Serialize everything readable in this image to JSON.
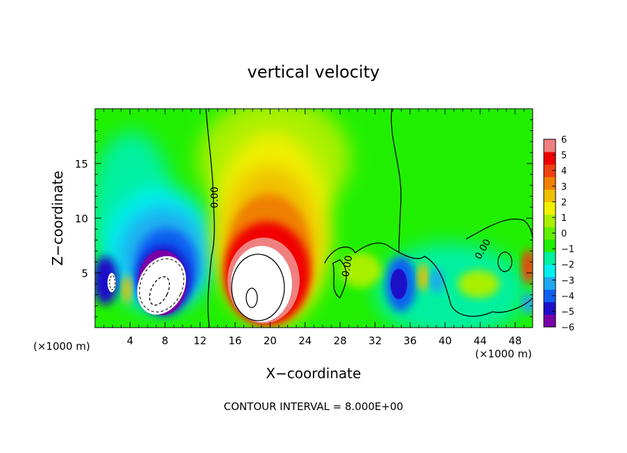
{
  "chart_data": {
    "type": "heatmap",
    "title": "vertical velocity",
    "xlabel": "X−coordinate",
    "ylabel": "Z−coordinate",
    "x_unit_left": "(×1000 m)",
    "x_unit_right": "(×1000 m)",
    "footer": "CONTOUR INTERVAL = 8.000E+00",
    "xlim": [
      0,
      50
    ],
    "ylim": [
      0,
      20
    ],
    "x_ticks": [
      4,
      8,
      12,
      16,
      20,
      24,
      28,
      32,
      36,
      40,
      44,
      48
    ],
    "y_ticks": [
      5,
      10,
      15
    ],
    "colorbar": {
      "ticks": [
        "6",
        "5",
        "4",
        "3",
        "2",
        "1",
        "0",
        "−1",
        "−2",
        "−3",
        "−4",
        "−5",
        "−6"
      ],
      "min": -6,
      "max": 6,
      "colors": [
        "#7a00a8",
        "#1c10c8",
        "#1060f0",
        "#20a8f0",
        "#00f0f0",
        "#00f0a0",
        "#20f000",
        "#60f000",
        "#a8f000",
        "#f0f000",
        "#f0c000",
        "#f08000",
        "#f04010",
        "#f00000",
        "#f08080"
      ]
    },
    "contour_labels": [
      "0.00",
      "0.00",
      "0.00"
    ],
    "features": [
      {
        "x": 1.6,
        "z": 4.0,
        "w": -4.5
      },
      {
        "x": 7.5,
        "z": 5.0,
        "w": -8.0
      },
      {
        "x": 8.0,
        "z": 10.0,
        "w": -3.5
      },
      {
        "x": 3.5,
        "z": 11.0,
        "w": -1.5
      },
      {
        "x": 19.5,
        "z": 5.0,
        "w": 9.0
      },
      {
        "x": 20.5,
        "z": 11.0,
        "w": 3.5
      },
      {
        "x": 35.0,
        "z": 4.0,
        "w": -4.0
      },
      {
        "x": 40.0,
        "z": 4.0,
        "w": -2.0
      },
      {
        "x": 3.8,
        "z": 3.5,
        "w": 3.0
      },
      {
        "x": 49.5,
        "z": 5.5,
        "w": 4.5
      },
      {
        "x": 49.5,
        "z": 2.5,
        "w": -3.0
      }
    ]
  }
}
